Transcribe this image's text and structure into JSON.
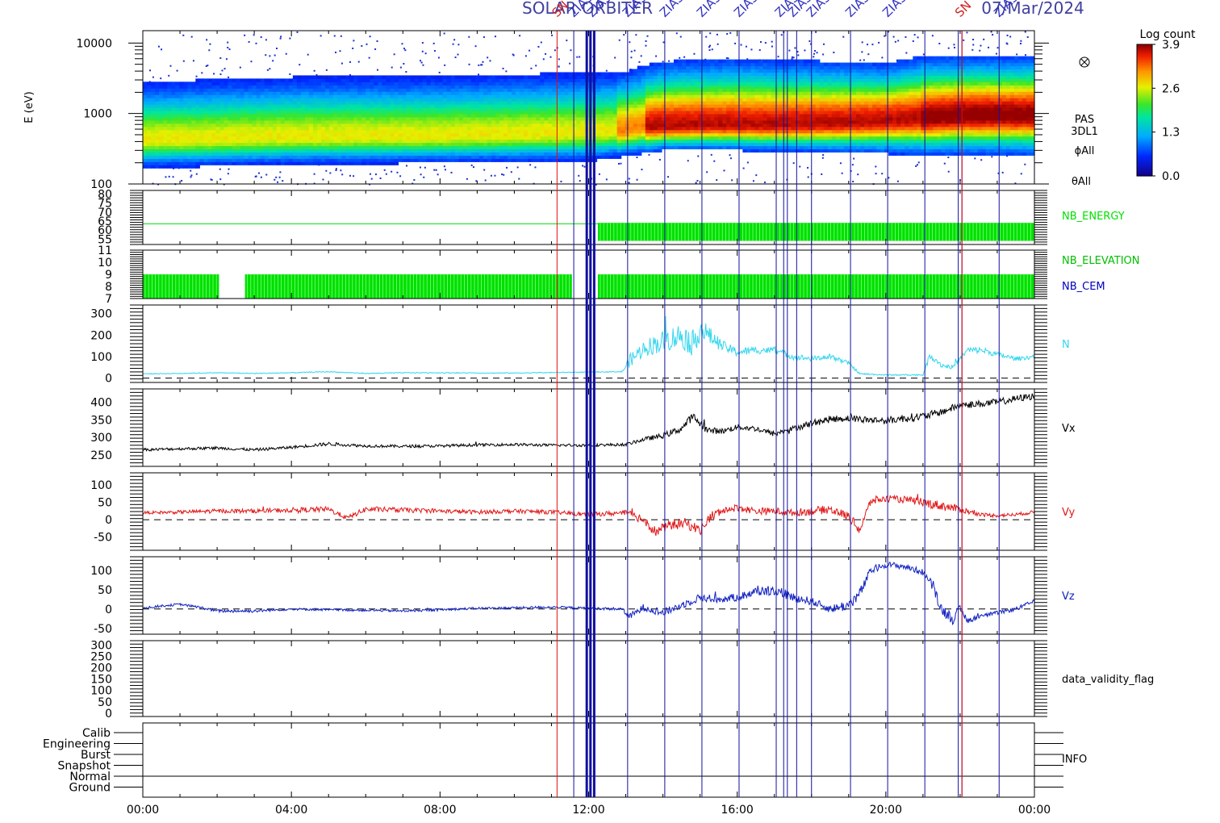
{
  "header": {
    "mission": "SOLAR ORBITER",
    "date": "07/Mar/2024",
    "event_labels": [
      "SN",
      "ZIAS",
      "ZIAS",
      "ZIAS",
      "ZIAS",
      "ZIAS",
      "ZIAS",
      "ZIAS",
      "ZIAS",
      "ZIAS",
      "ZIAS",
      "ZIAS",
      "SN",
      "ZIAS"
    ]
  },
  "chart_data": {
    "type": "line",
    "x_axis": {
      "unit": "hours",
      "range": [
        0,
        24
      ],
      "tick_labels": [
        "00:00",
        "04:00",
        "08:00",
        "12:00",
        "16:00",
        "20:00",
        "00:00"
      ],
      "tick_values": [
        0,
        4,
        8,
        12,
        16,
        20,
        24
      ]
    },
    "event_lines": {
      "red": [
        11.15,
        22.05
      ],
      "blue": [
        11.6,
        11.95,
        12.05,
        12.15,
        13.05,
        14.05,
        15.05,
        16.05,
        17.05,
        17.25,
        17.35,
        17.6,
        18.0,
        19.05,
        20.05,
        21.05,
        21.95,
        22.05,
        23.05
      ]
    },
    "panels": [
      {
        "id": "spectrogram",
        "type": "heatmap",
        "ylabel": "E (eV)",
        "y_scale": "log",
        "yticks": [
          "10000",
          "1000",
          "100"
        ],
        "ylim": [
          100,
          15000
        ],
        "right_labels": [
          "PAS",
          "3DL1",
          "ϕAll",
          "θAll"
        ],
        "colorbar": {
          "title": "Log count",
          "ticks": [
            "3.9",
            "2.6",
            "1.3",
            "0.0"
          ],
          "range": [
            0,
            3.9
          ]
        },
        "peak_energy_ev": [
          [
            0,
            420
          ],
          [
            4,
            470
          ],
          [
            8,
            480
          ],
          [
            11,
            520
          ],
          [
            12.8,
            560
          ],
          [
            13.5,
            650
          ],
          [
            15,
            700
          ],
          [
            17,
            700
          ],
          [
            19,
            750
          ],
          [
            21,
            850
          ],
          [
            22,
            950
          ],
          [
            24,
            950
          ]
        ],
        "upper_edge_ev": [
          [
            0,
            2800
          ],
          [
            4,
            3300
          ],
          [
            8,
            3400
          ],
          [
            12,
            3800
          ],
          [
            13,
            4000
          ],
          [
            14,
            5500
          ],
          [
            16,
            6000
          ],
          [
            20,
            5200
          ],
          [
            21,
            6500
          ],
          [
            24,
            6500
          ]
        ],
        "lower_edge_ev": [
          [
            0,
            170
          ],
          [
            4,
            190
          ],
          [
            8,
            200
          ],
          [
            12,
            210
          ],
          [
            13,
            250
          ],
          [
            14,
            300
          ],
          [
            16,
            300
          ],
          [
            20,
            270
          ],
          [
            21,
            260
          ],
          [
            24,
            260
          ]
        ]
      },
      {
        "id": "nb-energy",
        "type": "line",
        "yticks": [
          "80",
          "75",
          "70",
          "65",
          "60",
          "55"
        ],
        "ylim": [
          52,
          82
        ],
        "right_labels": [
          "NB_ENERGY"
        ],
        "color": "#00e000",
        "segments": [
          {
            "from": 0.0,
            "to": 12.25,
            "level": 63.5,
            "style": "line"
          },
          {
            "from": 12.25,
            "to": 24.0,
            "low": 54,
            "high": 64,
            "style": "block"
          }
        ]
      },
      {
        "id": "nb-elevation-cem",
        "type": "line",
        "yticks": [
          "11",
          "10",
          "9",
          "8",
          "7"
        ],
        "ylim": [
          7,
          11
        ],
        "right_labels": [
          "NB_ELEVATION",
          "NB_CEM"
        ],
        "right_label_colors": [
          "#00c000",
          "#0000c0"
        ],
        "color": "#00e000",
        "segments": [
          {
            "from": 0.0,
            "to": 2.05,
            "low": 7,
            "high": 9,
            "style": "block"
          },
          {
            "from": 2.75,
            "to": 11.55,
            "low": 7,
            "high": 9,
            "style": "block"
          },
          {
            "from": 12.25,
            "to": 24.0,
            "low": 7,
            "high": 9,
            "style": "block"
          }
        ]
      },
      {
        "id": "density",
        "type": "line",
        "ylabel": "N",
        "yticks": [
          "300",
          "200",
          "100",
          "0"
        ],
        "ylim": [
          -20,
          340
        ],
        "zero_line": true,
        "color": "#33d6ee",
        "x": [
          0,
          1,
          2,
          3,
          4,
          5,
          6,
          7,
          8,
          9,
          10,
          11,
          12,
          12.9,
          13.1,
          13.5,
          14.0,
          14.5,
          14.8,
          15.0,
          15.3,
          15.6,
          16,
          16.5,
          17.0,
          17.5,
          18,
          18.5,
          19.0,
          19.3,
          20,
          21,
          21.2,
          21.5,
          21.8,
          22.2,
          22.6,
          23,
          23.5,
          24
        ],
        "y": [
          20,
          22,
          25,
          22,
          25,
          30,
          22,
          25,
          25,
          24,
          24,
          26,
          28,
          30,
          80,
          140,
          170,
          200,
          160,
          230,
          190,
          150,
          120,
          130,
          130,
          100,
          90,
          100,
          70,
          20,
          15,
          15,
          110,
          60,
          50,
          130,
          130,
          110,
          90,
          100
        ],
        "noise": [
          2,
          2,
          2,
          2,
          2,
          2,
          2,
          2,
          2,
          2,
          2,
          2,
          2,
          2,
          30,
          40,
          50,
          60,
          60,
          60,
          40,
          25,
          20,
          18,
          15,
          15,
          12,
          12,
          10,
          4,
          3,
          3,
          20,
          12,
          8,
          15,
          15,
          12,
          10,
          10
        ]
      },
      {
        "id": "vx",
        "type": "line",
        "ylabel": "Vx",
        "yticks": [
          "400",
          "350",
          "300",
          "250"
        ],
        "ylim": [
          218,
          438
        ],
        "zero_line": false,
        "color": "#000000",
        "x": [
          0,
          1,
          2,
          3,
          4,
          5,
          6,
          7,
          8,
          9,
          10,
          11,
          12,
          13.0,
          13.5,
          14,
          14.5,
          14.8,
          15.2,
          15.6,
          16,
          16.5,
          17,
          17.5,
          18,
          18.5,
          19,
          19.5,
          20,
          20.5,
          21,
          21.5,
          22,
          22.5,
          23,
          23.5,
          24
        ],
        "y": [
          265,
          268,
          270,
          265,
          272,
          282,
          276,
          275,
          276,
          279,
          280,
          278,
          278,
          280,
          295,
          305,
          325,
          360,
          320,
          318,
          330,
          325,
          310,
          325,
          340,
          352,
          355,
          350,
          348,
          355,
          360,
          372,
          392,
          395,
          400,
          410,
          418
        ],
        "noise": [
          4,
          4,
          4,
          4,
          4,
          5,
          4,
          4,
          4,
          4,
          4,
          4,
          4,
          4,
          6,
          8,
          10,
          12,
          10,
          8,
          8,
          8,
          8,
          8,
          10,
          10,
          10,
          10,
          10,
          12,
          12,
          10,
          10,
          10,
          10,
          10,
          10
        ]
      },
      {
        "id": "vy",
        "type": "line",
        "ylabel": "Vy",
        "yticks": [
          "100",
          "50",
          "0",
          "-50"
        ],
        "ylim": [
          -88,
          135
        ],
        "zero_line": true,
        "color": "#e01818",
        "x": [
          0,
          1,
          2,
          3,
          4,
          5,
          5.5,
          6,
          7,
          8,
          9,
          10,
          11,
          12,
          13,
          13.5,
          13.8,
          14.2,
          14.6,
          15,
          15.3,
          15.6,
          16,
          16.5,
          17,
          17.5,
          18,
          18.5,
          19,
          19.3,
          19.6,
          20,
          20.5,
          21,
          21.5,
          22,
          22.5,
          23,
          23.5,
          24
        ],
        "y": [
          20,
          22,
          25,
          25,
          28,
          30,
          5,
          30,
          28,
          25,
          22,
          25,
          22,
          15,
          20,
          0,
          -35,
          -15,
          -10,
          -30,
          10,
          25,
          35,
          25,
          25,
          20,
          25,
          30,
          10,
          -30,
          55,
          60,
          58,
          50,
          40,
          30,
          15,
          12,
          15,
          22
        ],
        "noise": [
          4,
          5,
          6,
          6,
          7,
          8,
          6,
          8,
          7,
          6,
          6,
          6,
          6,
          6,
          8,
          15,
          15,
          15,
          15,
          15,
          15,
          12,
          10,
          10,
          10,
          10,
          12,
          12,
          12,
          15,
          12,
          10,
          10,
          12,
          14,
          10,
          6,
          5,
          5,
          5
        ]
      },
      {
        "id": "vz",
        "type": "line",
        "ylabel": "Vz",
        "yticks": [
          "100",
          "50",
          "0",
          "-50"
        ],
        "ylim": [
          -65,
          135
        ],
        "zero_line": true,
        "color": "#1020c0",
        "x": [
          0,
          0.5,
          1.0,
          1.5,
          2,
          3,
          4,
          5,
          6,
          7,
          8,
          9,
          10,
          11,
          12,
          12.9,
          13.1,
          13.5,
          14,
          14.5,
          15,
          15.5,
          16,
          16.5,
          17,
          17.5,
          18,
          18.5,
          19.0,
          19.3,
          19.6,
          20,
          20.5,
          21,
          21.2,
          21.5,
          21.8,
          22.0,
          22.2,
          22.5,
          23,
          23.5,
          24
        ],
        "y": [
          3,
          8,
          12,
          5,
          -5,
          -5,
          0,
          -2,
          -3,
          -5,
          -2,
          2,
          3,
          5,
          2,
          0,
          -20,
          5,
          -10,
          10,
          30,
          25,
          30,
          45,
          50,
          30,
          20,
          0,
          10,
          40,
          100,
          115,
          110,
          95,
          70,
          0,
          -25,
          0,
          -30,
          -20,
          -10,
          0,
          20
        ],
        "noise": [
          3,
          3,
          3,
          3,
          4,
          4,
          3,
          3,
          3,
          3,
          3,
          3,
          3,
          3,
          3,
          4,
          8,
          10,
          10,
          10,
          10,
          10,
          10,
          12,
          15,
          12,
          10,
          10,
          15,
          15,
          10,
          8,
          8,
          8,
          10,
          15,
          15,
          10,
          8,
          6,
          5,
          5,
          5
        ]
      },
      {
        "id": "data-validity",
        "type": "line",
        "ylabel": "data_validity_flag",
        "yticks": [
          "300",
          "250",
          "200",
          "150",
          "100",
          "50",
          "0"
        ],
        "ylim": [
          -15,
          320
        ]
      },
      {
        "id": "info",
        "type": "line",
        "ylabel": "INFO",
        "categories": [
          "Calib",
          "Engineering",
          "Burst",
          "Snapshot",
          "Normal",
          "Ground"
        ],
        "normal_line": true
      }
    ]
  }
}
